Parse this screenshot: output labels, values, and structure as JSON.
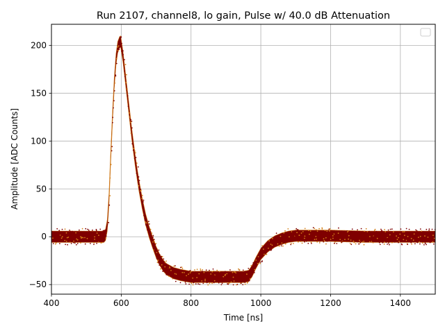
{
  "chart_data": {
    "type": "scatter",
    "title": "Run 2107, channel8, lo gain, Pulse w/ 40.0 dB Attenuation",
    "xlabel": "Time [ns]",
    "ylabel": "Amplitude [ADC Counts]",
    "xlim": [
      400,
      1500
    ],
    "ylim": [
      -60,
      222
    ],
    "xticks": [
      400,
      600,
      800,
      1000,
      1200,
      1400
    ],
    "yticks": [
      -50,
      0,
      50,
      100,
      150,
      200
    ],
    "grid": true,
    "legend": "top-right (empty)",
    "series": [
      {
        "marker_color": "#7f0000",
        "edge_color": "#d4801a",
        "band_half_width": 6,
        "envelope": {
          "x": [
            400,
            540,
            550,
            555,
            560,
            565,
            570,
            575,
            580,
            585,
            590,
            595,
            598,
            600,
            605,
            610,
            620,
            630,
            640,
            650,
            660,
            670,
            680,
            690,
            700,
            710,
            720,
            730,
            750,
            770,
            800,
            850,
            900,
            950,
            965,
            975,
            985,
            1000,
            1020,
            1040,
            1060,
            1080,
            1100,
            1200,
            1300,
            1400,
            1500
          ],
          "y": [
            0,
            0,
            0,
            2,
            12,
            40,
            85,
            125,
            160,
            185,
            198,
            203,
            204,
            200,
            188,
            172,
            140,
            108,
            80,
            55,
            35,
            18,
            5,
            -6,
            -16,
            -24,
            -30,
            -34,
            -38,
            -40,
            -42,
            -42,
            -42,
            -42,
            -41,
            -36,
            -28,
            -18,
            -10,
            -5,
            -2,
            0,
            1,
            1,
            0,
            0,
            0
          ]
        }
      }
    ]
  }
}
